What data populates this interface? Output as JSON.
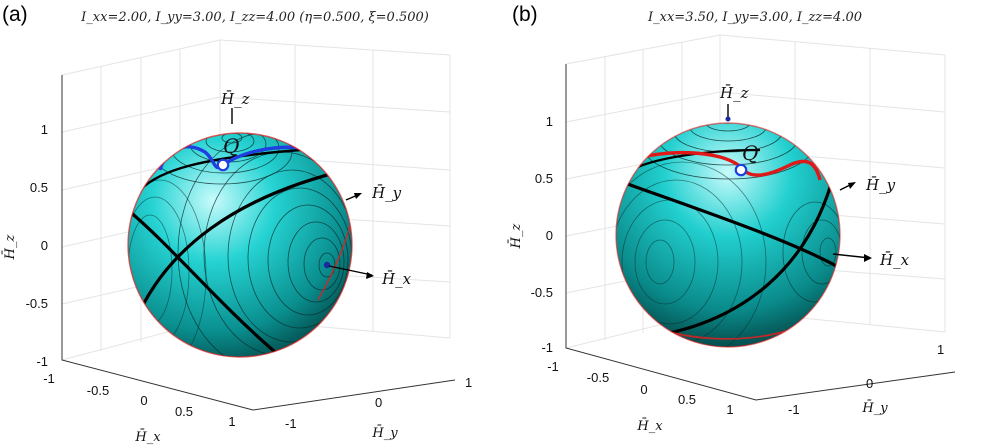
{
  "figure": {
    "panels": [
      {
        "tag": "(a)",
        "title": "I_xx=2.00, I_yy=3.00, I_zz=4.00 (η=0.500, ξ=0.500)",
        "z_axis_label": "H̄_z",
        "x_axis_label": "H̄_x",
        "y_axis_label": "H̄_y",
        "z_ticks": [
          "1",
          "0.5",
          "0",
          "-0.5",
          "-1"
        ],
        "x_ticks": [
          "-1",
          "-0.5",
          "0",
          "0.5",
          "1"
        ],
        "y_ticks": [
          "1",
          "0",
          "-1"
        ],
        "callouts": {
          "hz": "H̄_z",
          "hy": "H̄_y",
          "hx": "H̄_x",
          "q": "Q"
        },
        "highlight_curve_color": "#1f3fe0"
      },
      {
        "tag": "(b)",
        "title": "I_xx=3.50, I_yy=3.00, I_zz=4.00",
        "z_axis_label": "H̄_z",
        "x_axis_label": "H̄_x",
        "y_axis_label": "H̄_y",
        "z_ticks": [
          "1",
          "0.5",
          "0",
          "-0.5",
          "-1"
        ],
        "x_ticks": [
          "-1",
          "-0.5",
          "0",
          "0.5",
          "1"
        ],
        "y_ticks": [
          "1",
          "0",
          "-1"
        ],
        "callouts": {
          "hz": "H̄_z",
          "hy": "H̄_y",
          "hx": "H̄_x",
          "q": "Q"
        },
        "highlight_curve_color": "#e01818"
      }
    ],
    "colors": {
      "sphere_light": "#bff7f7",
      "sphere_base": "#00c6c6",
      "sphere_dark": "#004d4d",
      "contour_dark": "#0a2a2a",
      "contour_red": "#b03030",
      "separatrix": "#000000",
      "rim": "#e02020"
    }
  }
}
